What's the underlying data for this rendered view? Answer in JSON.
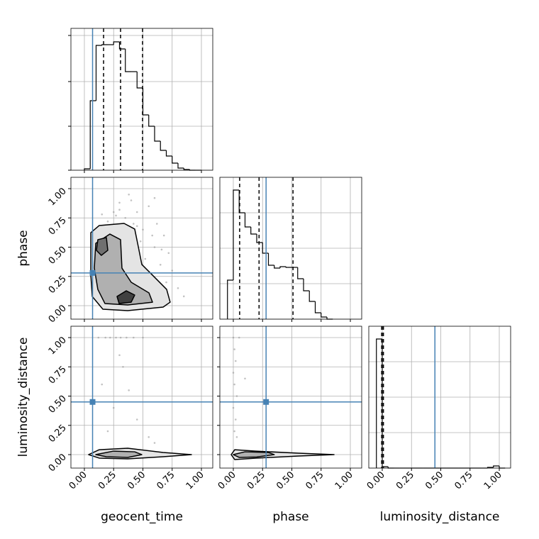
{
  "chart_data": {
    "type": "corner",
    "parameters": [
      "geocent_time",
      "phase",
      "luminosity_distance"
    ],
    "truths": [
      0.07,
      0.28,
      0.45
    ],
    "truth_color": "#4682b4",
    "lim": [
      -0.115,
      1.097
    ],
    "ticks": [
      {
        "value": 0,
        "label": "0.00"
      },
      {
        "value": 0.25,
        "label": "0.25"
      },
      {
        "value": 0.5,
        "label": "0.50"
      },
      {
        "value": 0.75,
        "label": "0.75"
      },
      {
        "value": 1,
        "label": "1.00"
      }
    ],
    "grid": true,
    "histograms": [
      {
        "bins": [
          0,
          0.05,
          0.1,
          0.15,
          0.2,
          0.25,
          0.3,
          0.35,
          0.4,
          0.45,
          0.5,
          0.55,
          0.6,
          0.65,
          0.7,
          0.75,
          0.8,
          0.85,
          0.9,
          0.95,
          1.0
        ],
        "counts": [
          2,
          98,
          176,
          177,
          177,
          181,
          171,
          139,
          139,
          116,
          78,
          62,
          41,
          28,
          20,
          10,
          3,
          1,
          0,
          0
        ],
        "quantiles": [
          0.164,
          0.309,
          0.497
        ],
        "ylim": [
          0,
          200
        ],
        "yticks": [
          0,
          62,
          125,
          190
        ]
      },
      {
        "bins": [
          -0.05,
          0,
          0.05,
          0.1,
          0.15,
          0.2,
          0.25,
          0.3,
          0.35,
          0.4,
          0.45,
          0.5,
          0.55,
          0.6,
          0.65,
          0.7,
          0.75,
          0.8,
          0.85
        ],
        "counts": [
          55,
          182,
          150,
          130,
          120,
          108,
          93,
          76,
          72,
          74,
          73,
          73,
          57,
          40,
          25,
          9,
          3,
          0
        ],
        "quantiles": [
          0.054,
          0.22,
          0.51
        ],
        "ylim": [
          0,
          200
        ],
        "yticks": [
          0,
          50,
          100,
          150
        ]
      },
      {
        "bins": [
          -0.05,
          0,
          0.05,
          0.1,
          0.15,
          0.2,
          0.25,
          0.3,
          0.35,
          0.4,
          0.45,
          0.5,
          0.55,
          0.6,
          0.65,
          0.7,
          0.75,
          0.8,
          0.85,
          0.9,
          0.95,
          1.0,
          1.05
        ],
        "counts": [
          182,
          2,
          0,
          0,
          0,
          0,
          0,
          0,
          0,
          0,
          0,
          0,
          0,
          0,
          0,
          0,
          0,
          0,
          0,
          1,
          3,
          0
        ],
        "quantiles": [
          -0.005,
          0.0,
          0.01
        ],
        "ylim": [
          0,
          200
        ],
        "yticks": [
          0,
          50,
          100,
          150
        ]
      }
    ],
    "pairs": [
      {
        "x_param": 0,
        "y_param": 1,
        "points": {
          "x": [
            0.15,
            0.3,
            0.45,
            0.55,
            0.62,
            0.68,
            0.72,
            0.5,
            0.4,
            0.35,
            0.2,
            0.25,
            0.6,
            0.75,
            0.8,
            0.52,
            0.48,
            0.65,
            0.42,
            0.58,
            0.7,
            0.38,
            0.3,
            0.55,
            0.45,
            0.85,
            0.66,
            0.27,
            0.6,
            0.5
          ],
          "y": [
            0.78,
            0.82,
            0.8,
            0.85,
            0.7,
            0.6,
            0.45,
            0.65,
            0.9,
            0.75,
            0.72,
            0.8,
            0.5,
            0.3,
            0.15,
            0.4,
            0.55,
            0.35,
            0.7,
            0.6,
            0.2,
            0.95,
            0.88,
            0.25,
            0.68,
            0.08,
            0.48,
            0.77,
            0.92,
            0.3
          ]
        },
        "contours": [
          {
            "x": [
              0.055,
              0.055,
              0.127,
              0.339,
              0.43,
              0.461,
              0.491,
              0.582,
              0.703,
              0.733,
              0.673,
              0.37,
              0.158,
              0.067,
              0.055
            ],
            "y": [
              0.473,
              0.624,
              0.685,
              0.703,
              0.655,
              0.503,
              0.352,
              0.261,
              0.139,
              0.03,
              -0.012,
              -0.042,
              -0.03,
              0.079,
              0.261
            ]
          },
          {
            "x": [
              0.085,
              0.097,
              0.218,
              0.309,
              0.321,
              0.4,
              0.552,
              0.582,
              0.37,
              0.176,
              0.115
            ],
            "y": [
              0.321,
              0.533,
              0.612,
              0.564,
              0.321,
              0.2,
              0.109,
              0.03,
              0.006,
              0.018,
              0.139
            ]
          },
          {
            "x": [
              0.103,
              0.115,
              0.188,
              0.2,
              0.145
            ],
            "y": [
              0.473,
              0.564,
              0.582,
              0.473,
              0.43
            ]
          },
          {
            "x": [
              0.279,
              0.358,
              0.43,
              0.4,
              0.297
            ],
            "y": [
              0.079,
              0.127,
              0.091,
              0.03,
              0.018
            ]
          }
        ]
      },
      {
        "x_param": 0,
        "y_param": 2,
        "points": {
          "x": [
            0.12,
            0.18,
            0.22,
            0.27,
            0.31,
            0.36,
            0.42,
            0.5,
            0.15,
            0.25,
            0.33,
            0.45,
            0.2,
            0.38,
            0.55,
            0.3,
            0.6
          ],
          "y": [
            1,
            1,
            1,
            1,
            1,
            1,
            1,
            1,
            0.6,
            0.4,
            0.75,
            0.3,
            0.2,
            0.55,
            0.15,
            0.85,
            0.1
          ]
        },
        "contours": [
          {
            "x": [
              0.036,
              0.127,
              0.37,
              0.673,
              0.915,
              0.673,
              0.37,
              0.127
            ],
            "y": [
              0,
              0.042,
              0.055,
              0.018,
              0,
              -0.018,
              -0.036,
              -0.03
            ]
          },
          {
            "x": [
              0.097,
              0.248,
              0.43,
              0.491,
              0.37,
              0.188
            ],
            "y": [
              0,
              0.03,
              0.024,
              0,
              -0.024,
              -0.018
            ]
          }
        ]
      },
      {
        "x_param": 1,
        "y_param": 2,
        "points": {
          "x": [
            0,
            0.01,
            0.02,
            0,
            0.01,
            0.03,
            0,
            0.02,
            0.01,
            0.05,
            0.1,
            0.03
          ],
          "y": [
            1,
            0.9,
            0.8,
            0.7,
            0.6,
            0.5,
            0.4,
            0.3,
            0.2,
            1,
            0.65,
            0.15
          ]
        },
        "contours": [
          {
            "x": [
              -0.018,
              0.012,
              0.194,
              0.558,
              0.861,
              0.558,
              0.194,
              0.012
            ],
            "y": [
              0,
              0.042,
              0.03,
              0.012,
              0,
              -0.012,
              -0.03,
              -0.042
            ]
          },
          {
            "x": [
              0.0,
              0.1,
              0.3,
              0.35,
              0.2,
              0.05
            ],
            "y": [
              0,
              0.024,
              0.018,
              0,
              -0.02,
              -0.024
            ]
          }
        ]
      }
    ]
  }
}
